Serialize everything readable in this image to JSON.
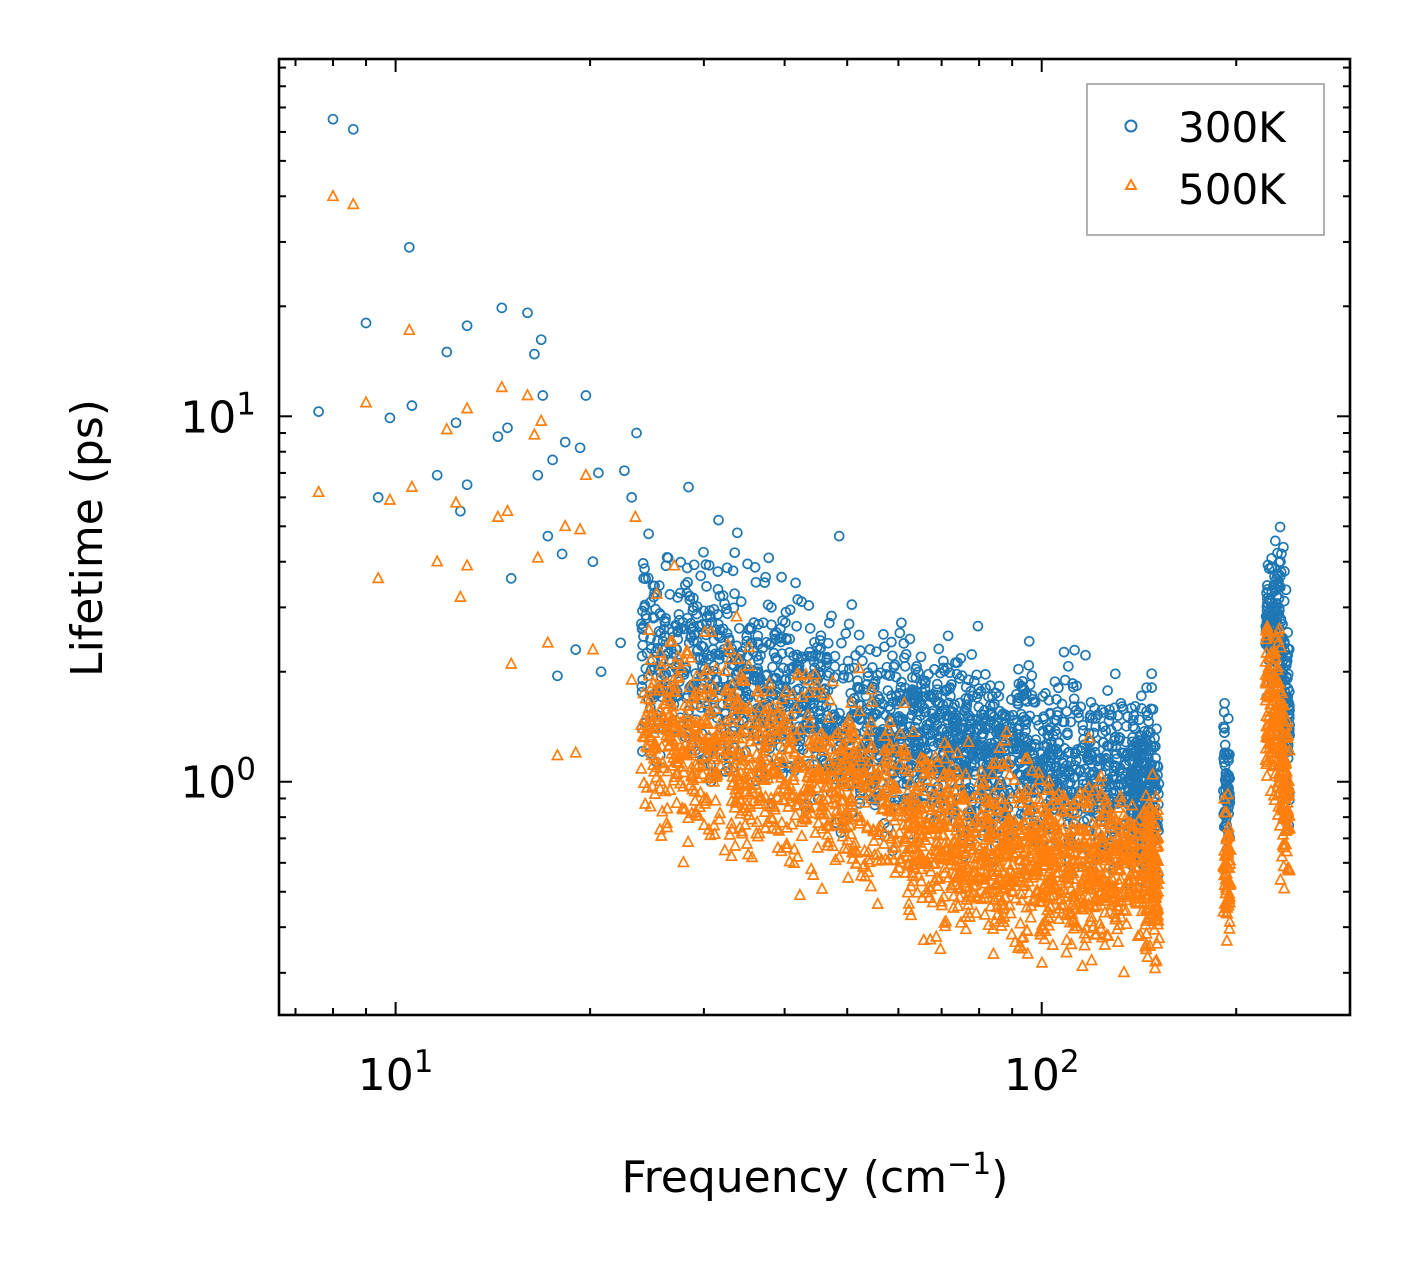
{
  "chart_data": {
    "type": "scatter",
    "title": "",
    "xlabel": "Frequency (cm",
    "xlabel_sup": "−1",
    "xlabel_tail": ")",
    "ylabel": "Lifetime (ps)",
    "xscale": "log",
    "yscale": "log",
    "xlim": [
      6.6,
      300
    ],
    "ylim": [
      0.23,
      95
    ],
    "x_tick_labels": [
      {
        "value": 10,
        "base": "10",
        "exp": "1"
      },
      {
        "value": 100,
        "base": "10",
        "exp": "2"
      }
    ],
    "y_tick_labels": [
      {
        "value": 1,
        "base": "10",
        "exp": "0"
      },
      {
        "value": 10,
        "base": "10",
        "exp": "1"
      }
    ],
    "legend": {
      "position": "top-right",
      "entries": [
        "300K",
        "500K"
      ]
    },
    "series": [
      {
        "name": "300K",
        "marker": "circle",
        "color": "#1f77b4",
        "points": [
          [
            7.6,
            10.3
          ],
          [
            8.0,
            65
          ],
          [
            8.6,
            61
          ],
          [
            9.0,
            18
          ],
          [
            9.4,
            6.0
          ],
          [
            9.8,
            9.9
          ],
          [
            10.5,
            29
          ],
          [
            10.6,
            10.7
          ],
          [
            11.6,
            6.9
          ],
          [
            12.0,
            15
          ],
          [
            12.4,
            9.6
          ],
          [
            12.6,
            5.5
          ],
          [
            12.9,
            17.7
          ],
          [
            12.9,
            6.5
          ],
          [
            14.4,
            8.8
          ],
          [
            14.6,
            19.8
          ],
          [
            14.9,
            9.3
          ],
          [
            15.1,
            3.6
          ],
          [
            16.0,
            19.2
          ],
          [
            16.4,
            14.8
          ],
          [
            16.6,
            6.9
          ],
          [
            16.8,
            16.2
          ],
          [
            16.9,
            11.4
          ],
          [
            17.2,
            4.7
          ],
          [
            17.5,
            7.6
          ],
          [
            18.1,
            4.2
          ],
          [
            18.3,
            8.5
          ],
          [
            19.3,
            8.2
          ],
          [
            19.7,
            11.4
          ],
          [
            20.2,
            4.0
          ],
          [
            20.6,
            7.0
          ],
          [
            22.6,
            7.1
          ],
          [
            23.2,
            6.0
          ],
          [
            23.6,
            9.0
          ],
          [
            24.2,
            3.6
          ],
          [
            28.4,
            6.4
          ],
          [
            31.6,
            5.2
          ],
          [
            33.8,
            4.8
          ],
          [
            37.8,
            4.1
          ],
          [
            41.6,
            3.5
          ],
          [
            48.6,
            4.7
          ],
          [
            17.8,
            1.95
          ],
          [
            19.0,
            2.3
          ],
          [
            20.8,
            2.0
          ],
          [
            22.3,
            2.4
          ],
          [
            24.8,
            3.1
          ],
          [
            26.7,
            2.3
          ],
          [
            28.9,
            3.0
          ]
        ],
        "clusters": [
          {
            "x": [
              24.0,
              62.0
            ],
            "y_center": [
              2.3,
              1.35
            ],
            "y_spread": 0.5,
            "count": 950
          },
          {
            "x": [
              62.0,
              148.0
            ],
            "y_center": [
              1.35,
              0.98
            ],
            "y_spread": 0.44,
            "count": 1150
          },
          {
            "x": [
              138.0,
              152.0
            ],
            "y_center": [
              1.0,
              0.88
            ],
            "y_spread": 0.45,
            "count": 160
          },
          {
            "x": [
              191.0,
              196.0
            ],
            "y_center": [
              1.05,
              0.92
            ],
            "y_spread": 0.35,
            "count": 60
          },
          {
            "x": [
              222.0,
              232.0
            ],
            "y_center": [
              2.8,
              2.8
            ],
            "y_spread": 0.36,
            "count": 110
          },
          {
            "x": [
              232.0,
              242.0
            ],
            "y_center": [
              2.4,
              1.5
            ],
            "y_spread": 0.55,
            "count": 120
          }
        ]
      },
      {
        "name": "500K",
        "marker": "triangle",
        "color": "#ff7f0e",
        "points": [
          [
            7.6,
            6.2
          ],
          [
            8.0,
            40
          ],
          [
            8.6,
            38
          ],
          [
            9.0,
            10.9
          ],
          [
            9.4,
            3.6
          ],
          [
            9.8,
            5.9
          ],
          [
            10.5,
            17.2
          ],
          [
            10.6,
            6.4
          ],
          [
            11.6,
            4.0
          ],
          [
            12.0,
            9.2
          ],
          [
            12.4,
            5.8
          ],
          [
            12.6,
            3.2
          ],
          [
            12.9,
            10.5
          ],
          [
            12.9,
            3.9
          ],
          [
            14.4,
            5.3
          ],
          [
            14.6,
            12.0
          ],
          [
            14.9,
            5.5
          ],
          [
            15.1,
            2.1
          ],
          [
            16.0,
            11.4
          ],
          [
            16.4,
            8.9
          ],
          [
            16.8,
            9.7
          ],
          [
            16.6,
            4.1
          ],
          [
            17.2,
            2.4
          ],
          [
            17.8,
            1.18
          ],
          [
            18.3,
            5.0
          ],
          [
            19.0,
            1.2
          ],
          [
            19.3,
            4.9
          ],
          [
            19.7,
            6.9
          ],
          [
            20.2,
            2.3
          ],
          [
            23.5,
            5.3
          ],
          [
            27.0,
            3.9
          ],
          [
            23.2,
            1.9
          ],
          [
            25.0,
            1.45
          ]
        ],
        "clusters": [
          {
            "x": [
              24.0,
              62.0
            ],
            "y_center": [
              1.45,
              0.85
            ],
            "y_spread": 0.48,
            "count": 900
          },
          {
            "x": [
              62.0,
              148.0
            ],
            "y_center": [
              0.72,
              0.55
            ],
            "y_spread": 0.44,
            "count": 1150
          },
          {
            "x": [
              145.0,
              152.0
            ],
            "y_center": [
              0.6,
              0.5
            ],
            "y_spread": 0.4,
            "count": 120
          },
          {
            "x": [
              191.0,
              196.0
            ],
            "y_center": [
              0.62,
              0.55
            ],
            "y_spread": 0.35,
            "count": 60
          },
          {
            "x": [
              222.0,
              232.0
            ],
            "y_center": [
              1.7,
              1.5
            ],
            "y_spread": 0.42,
            "count": 110
          },
          {
            "x": [
              232.0,
              242.0
            ],
            "y_center": [
              1.4,
              0.8
            ],
            "y_spread": 0.55,
            "count": 120
          }
        ]
      }
    ]
  }
}
